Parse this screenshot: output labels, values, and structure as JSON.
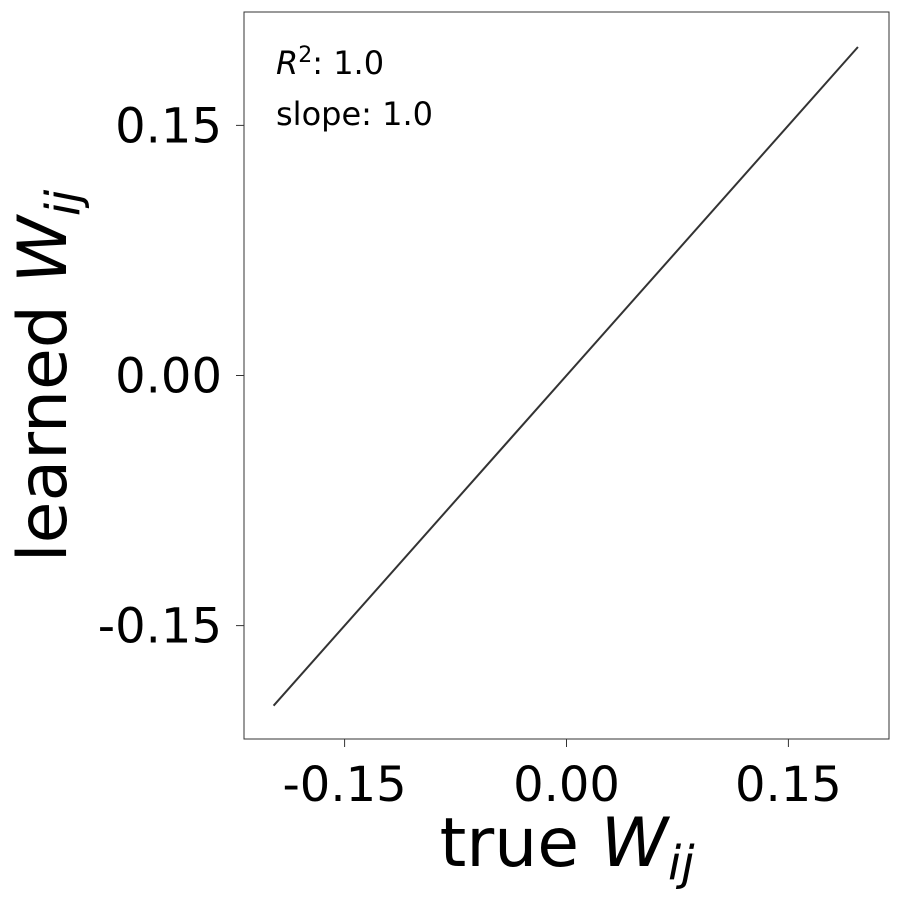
{
  "chart_data": {
    "type": "line",
    "xlabel": [
      "true ",
      "W",
      "ij"
    ],
    "ylabel": [
      "learned ",
      "W",
      "ij"
    ],
    "annotations": [
      [
        "R",
        "2",
        ": 1.0"
      ],
      [
        "slope: 1.0"
      ]
    ],
    "x": [
      -0.198,
      0.197
    ],
    "series": [
      {
        "color": "#333333",
        "values": [
          -0.198,
          0.197
        ]
      }
    ],
    "xlim": [
      -0.218,
      0.218
    ],
    "ylim": [
      -0.218,
      0.218
    ],
    "xticks": [
      {
        "value": -0.15,
        "label": "-0.15"
      },
      {
        "value": 0,
        "label": "0.00"
      },
      {
        "value": 0.15,
        "label": "0.15"
      }
    ],
    "yticks": [
      {
        "value": -0.15,
        "label": "-0.15"
      },
      {
        "value": 0,
        "label": "0.00"
      },
      {
        "value": 0.15,
        "label": "0.15"
      }
    ],
    "grid": false
  }
}
